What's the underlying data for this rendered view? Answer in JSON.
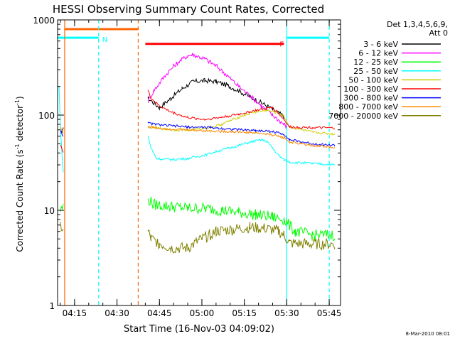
{
  "chart_data": {
    "type": "line",
    "title": "HESSI Observing Summary Count Rates, Corrected",
    "xlabel": "Start Time (16-Nov-03 04:09:02)",
    "ylabel_main": "Corrected Count Rate (s",
    "ylabel_sup1": "-1",
    "ylabel_mid": " detector",
    "ylabel_sup2": "-1",
    "ylabel_end": ")",
    "y_scale": "log",
    "ylim": [
      1,
      1000
    ],
    "xlim_minutes": [
      0,
      100
    ],
    "x_ticks": [
      {
        "label": "04:15",
        "t": 6
      },
      {
        "label": "04:30",
        "t": 21
      },
      {
        "label": "04:45",
        "t": 36
      },
      {
        "label": "05:00",
        "t": 51
      },
      {
        "label": "05:15",
        "t": 66
      },
      {
        "label": "05:30",
        "t": 81
      },
      {
        "label": "05:45",
        "t": 96
      }
    ],
    "y_ticks": [
      {
        "label": "1",
        "v": 1
      },
      {
        "label": "10",
        "v": 10
      },
      {
        "label": "100",
        "v": 100
      },
      {
        "label": "1000",
        "v": 1000
      }
    ],
    "grid": false,
    "legend_position": "right",
    "legend_header": [
      "Det 1,3,4,5,6,9,",
      "Att 0"
    ],
    "timestamp": "8-Mar-2010 08:01",
    "series": [
      {
        "name": "3 - 6 keV",
        "color": "#000000",
        "points": [
          [
            1,
            60
          ],
          [
            2,
            75
          ],
          [
            32,
            150
          ],
          [
            36,
            120
          ],
          [
            40,
            150
          ],
          [
            44,
            190
          ],
          [
            48,
            225
          ],
          [
            52,
            230
          ],
          [
            56,
            225
          ],
          [
            60,
            205
          ],
          [
            64,
            180
          ],
          [
            68,
            155
          ],
          [
            72,
            135
          ],
          [
            76,
            115
          ],
          [
            80,
            97
          ]
        ]
      },
      {
        "name": "6 - 12 keV",
        "color": "#ff00ff",
        "points": [
          [
            32,
            140
          ],
          [
            34,
            180
          ],
          [
            38,
            260
          ],
          [
            42,
            350
          ],
          [
            46,
            420
          ],
          [
            48,
            430
          ],
          [
            52,
            390
          ],
          [
            56,
            330
          ],
          [
            60,
            260
          ],
          [
            64,
            200
          ],
          [
            68,
            160
          ],
          [
            72,
            125
          ],
          [
            76,
            100
          ],
          [
            80,
            80
          ],
          [
            81,
            75
          ]
        ]
      },
      {
        "name": "12 - 25 keV",
        "color": "#00ff00",
        "points": [
          [
            1,
            10
          ],
          [
            2,
            11
          ],
          [
            32,
            13
          ],
          [
            34,
            11.5
          ],
          [
            40,
            11
          ],
          [
            46,
            10.5
          ],
          [
            52,
            10.5
          ],
          [
            58,
            10
          ],
          [
            64,
            9.5
          ],
          [
            70,
            9
          ],
          [
            76,
            8.5
          ],
          [
            80,
            8
          ],
          [
            84,
            6
          ],
          [
            90,
            5.5
          ],
          [
            98,
            5.5
          ]
        ]
      },
      {
        "name": "25 - 50 keV",
        "color": "#00ffff",
        "points": [
          [
            0.5,
            200
          ],
          [
            1,
            70
          ],
          [
            2,
            25
          ],
          [
            32,
            60
          ],
          [
            33,
            45
          ],
          [
            35,
            35
          ],
          [
            40,
            34
          ],
          [
            46,
            35
          ],
          [
            52,
            38
          ],
          [
            58,
            43
          ],
          [
            64,
            48
          ],
          [
            68,
            52
          ],
          [
            72,
            55
          ],
          [
            74,
            53
          ],
          [
            76,
            45
          ],
          [
            78,
            38
          ],
          [
            80,
            34
          ],
          [
            82,
            32
          ],
          [
            90,
            31
          ],
          [
            98,
            30
          ]
        ]
      },
      {
        "name": "50 - 100 keV",
        "color": "#cccc00",
        "points": [
          [
            32,
            75
          ],
          [
            40,
            70
          ],
          [
            48,
            70
          ],
          [
            54,
            74
          ],
          [
            58,
            80
          ],
          [
            62,
            90
          ],
          [
            66,
            100
          ],
          [
            70,
            108
          ],
          [
            74,
            112
          ],
          [
            78,
            105
          ],
          [
            80,
            97
          ],
          [
            82,
            75
          ],
          [
            90,
            66
          ],
          [
            98,
            63
          ]
        ]
      },
      {
        "name": "100 - 300 keV",
        "color": "#ff0000",
        "points": [
          [
            1,
            50
          ],
          [
            2,
            40
          ],
          [
            32,
            180
          ],
          [
            33,
            150
          ],
          [
            36,
            125
          ],
          [
            40,
            108
          ],
          [
            46,
            94
          ],
          [
            52,
            90
          ],
          [
            58,
            95
          ],
          [
            64,
            102
          ],
          [
            70,
            112
          ],
          [
            76,
            120
          ],
          [
            78,
            105
          ],
          [
            80,
            90
          ],
          [
            82,
            75
          ],
          [
            90,
            74
          ],
          [
            98,
            73
          ]
        ]
      },
      {
        "name": "300 - 800 keV",
        "color": "#0000ff",
        "points": [
          [
            1,
            70
          ],
          [
            2,
            60
          ],
          [
            32,
            82
          ],
          [
            38,
            78
          ],
          [
            46,
            75
          ],
          [
            54,
            74
          ],
          [
            62,
            71
          ],
          [
            70,
            69
          ],
          [
            76,
            67
          ],
          [
            80,
            63
          ],
          [
            82,
            55
          ],
          [
            90,
            50
          ],
          [
            98,
            48
          ]
        ]
      },
      {
        "name": "800 - 7000 keV",
        "color": "#ff8800",
        "points": [
          [
            1,
            75
          ],
          [
            2,
            65
          ],
          [
            32,
            75
          ],
          [
            38,
            72
          ],
          [
            46,
            70
          ],
          [
            54,
            68
          ],
          [
            62,
            67
          ],
          [
            70,
            65
          ],
          [
            76,
            62
          ],
          [
            80,
            58
          ],
          [
            82,
            52
          ],
          [
            90,
            48
          ],
          [
            98,
            46
          ]
        ]
      },
      {
        "name": "7000 - 20000 keV",
        "color": "#808000",
        "points": [
          [
            1,
            7
          ],
          [
            2,
            6
          ],
          [
            32,
            6
          ],
          [
            33,
            5
          ],
          [
            36,
            4.5
          ],
          [
            40,
            4
          ],
          [
            46,
            4
          ],
          [
            50,
            4.8
          ],
          [
            56,
            6
          ],
          [
            62,
            6.3
          ],
          [
            68,
            6.6
          ],
          [
            74,
            6.4
          ],
          [
            78,
            6
          ],
          [
            80,
            5.5
          ],
          [
            82,
            4.5
          ],
          [
            90,
            4.4
          ],
          [
            98,
            4.4
          ]
        ]
      }
    ],
    "state_bars": [
      {
        "label": "N",
        "color": "#00ffff",
        "level": 650,
        "segments": [
          [
            0,
            14.5
          ],
          [
            81,
            96
          ]
        ]
      },
      {
        "label": "",
        "color": "#ff6600",
        "level": 800,
        "segments": [
          [
            2.5,
            28.5
          ]
        ]
      },
      {
        "label": "F",
        "color": "#ff0000",
        "level": 560,
        "segments": [
          [
            31,
            80
          ]
        ]
      }
    ],
    "markers": [
      {
        "color": "#00ffff",
        "style": "dashed",
        "t": 14.5
      },
      {
        "color": "#ff6600",
        "style": "dashed",
        "t": 28.5
      },
      {
        "color": "#00ffff",
        "style": "solid",
        "t": 81
      },
      {
        "color": "#00ffff",
        "style": "dashed",
        "t": 96
      },
      {
        "color": "#ff6600",
        "style": "solid",
        "t": 2.5
      }
    ]
  }
}
